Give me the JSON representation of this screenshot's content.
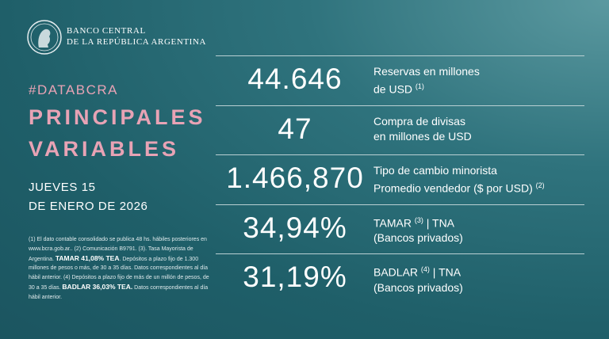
{
  "header": {
    "bank_line_1": "BANCO CENTRAL",
    "bank_line_2": "DE LA REPÚBLICA ARGENTINA",
    "tag": "#DATABCRA",
    "title_lines": [
      "PRINCIPALES",
      "VARIABLES"
    ],
    "date_lines": [
      "JUEVES 15",
      "DE ENERO DE 2026"
    ]
  },
  "footnote": [
    {
      "text": "(1) El dato contable consolidado se publica 48 hs. hábiles posteriores en www.bcra.gob.ar.. (2) Comunicación B9791. (3). Tasa Mayorista de Argentina. "
    },
    {
      "text": "TAMAR 41,08% TEA",
      "bold": true
    },
    {
      "text": ". Depósitos a plazo fijo de 1.300 millones de pesos o más, de 30 a 35 días. Datos correspondientes al día hábil anterior. (4) Depósitos a plazo fijo de más de un millón de pesos, de 30 a 35 días. "
    },
    {
      "text": "BADLAR 36,03% TEA.",
      "bold": true
    },
    {
      "text": " Datos correspondientes al día hábil anterior."
    }
  ],
  "indicators": [
    {
      "value": "44.646",
      "lines": [
        {
          "text": "Reservas en millones"
        },
        {
          "text": "de USD ",
          "sup": "(1)"
        }
      ]
    },
    {
      "value": "47",
      "lines": [
        {
          "text": "Compra de divisas"
        },
        {
          "text": "en millones de USD"
        }
      ]
    },
    {
      "value": "1.466,870",
      "lines": [
        {
          "text": "Tipo de cambio minorista"
        },
        {
          "text": "Promedio vendedor ($ por USD) ",
          "sup": "(2)"
        }
      ]
    },
    {
      "value": "34,94%",
      "lines": [
        {
          "text": "TAMAR ",
          "sup": "(3)",
          "after": " | TNA"
        },
        {
          "text": "(Bancos privados)"
        }
      ]
    },
    {
      "value": "31,19%",
      "lines": [
        {
          "text": "BADLAR ",
          "sup": "(4)",
          "after": " | TNA"
        },
        {
          "text": "(Bancos privados)"
        }
      ]
    }
  ]
}
